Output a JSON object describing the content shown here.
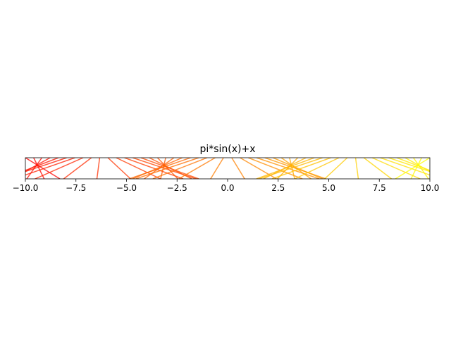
{
  "chart_data": {
    "type": "line",
    "title": "pi*sin(x)+x",
    "xlabel": "",
    "ylabel": "",
    "xlim": [
      -10,
      10
    ],
    "ylim": [
      0,
      1
    ],
    "grid": false,
    "legend": "none",
    "xticks": [
      -10,
      -7.5,
      -5,
      -2.5,
      0,
      2.5,
      5,
      7.5,
      10
    ],
    "xtick_labels": [
      "−10.0",
      "−7.5",
      "−5.0",
      "−2.5",
      "0.0",
      "2.5",
      "5.0",
      "7.5",
      "10.0"
    ],
    "yticks": [],
    "segments": {
      "description": "segments from (x, 1) to (pi*sin(x)+x, 0)",
      "x_start": -10,
      "x_end": 10,
      "count": 50,
      "color_from": "#ff0000",
      "color_to": "#ffff00",
      "alpha": 0.75
    }
  }
}
